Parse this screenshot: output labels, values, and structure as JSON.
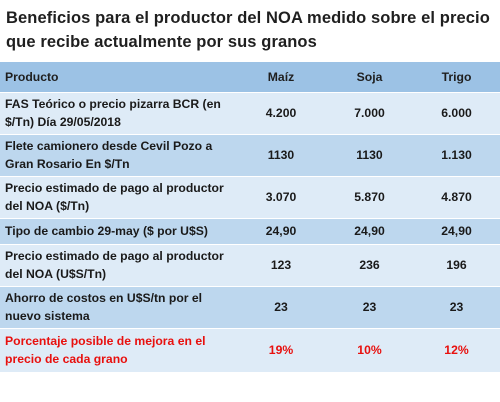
{
  "title": "Beneficios para el productor del NOA medido sobre el precio que recibe actualmente por sus granos",
  "colors": {
    "header_bg": "#9cc2e5",
    "row_light": "#deebf7",
    "row_dark": "#bdd7ee",
    "highlight": "#e8100e"
  },
  "table": {
    "headers": [
      "Producto",
      "Maíz",
      "Soja",
      "Trigo"
    ],
    "rows": [
      {
        "label": "FAS Teórico o precio pizarra BCR (en $/Tn) Día 29/05/2018",
        "maiz": "4.200",
        "soja": "7.000",
        "trigo": "6.000"
      },
      {
        "label": "Flete camionero desde Cevil Pozo  a Gran Rosario En $/Tn",
        "maiz": "1130",
        "soja": "1130",
        "trigo": "1.130"
      },
      {
        "label": "Precio estimado de pago al productor del NOA ($/Tn)",
        "maiz": "3.070",
        "soja": "5.870",
        "trigo": "4.870"
      },
      {
        "label": "Tipo de cambio 29-may ($ por U$S)",
        "maiz": "24,90",
        "soja": "24,90",
        "trigo": "24,90"
      },
      {
        "label": "Precio estimado de pago al productor del NOA (U$S/Tn)",
        "maiz": "123",
        "soja": "236",
        "trigo": "196"
      },
      {
        "label": "Ahorro de costos en U$S/tn por el nuevo sistema",
        "maiz": "23",
        "soja": "23",
        "trigo": "23"
      },
      {
        "label": "Porcentaje posible de mejora en el precio de cada grano",
        "maiz": "19%",
        "soja": "10%",
        "trigo": "12%"
      }
    ]
  }
}
